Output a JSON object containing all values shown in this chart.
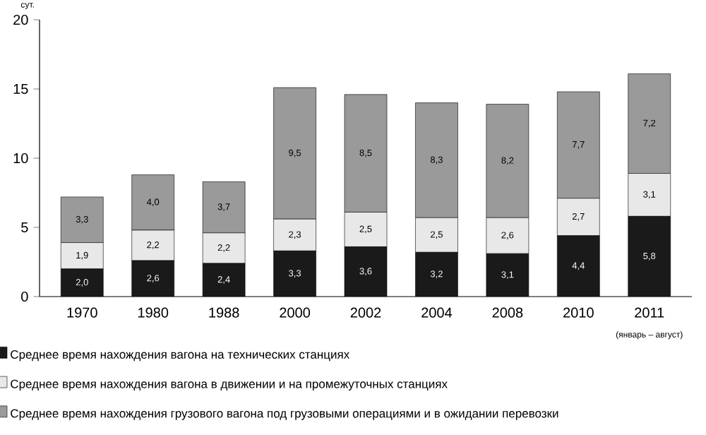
{
  "chart_data": {
    "type": "bar",
    "stacked": true,
    "ylabel": "сут.",
    "categories": [
      "1970",
      "1980",
      "1988",
      "2000",
      "2002",
      "2004",
      "2008",
      "2010",
      "2011"
    ],
    "annotations": [
      "(январь – август)"
    ],
    "series": [
      {
        "name": "Среднее время нахождения вагона на технических станциях",
        "color": "#1a1a1a",
        "values": [
          2.0,
          2.6,
          2.4,
          3.3,
          3.6,
          3.2,
          3.1,
          4.4,
          5.8
        ],
        "value_labels": [
          "2,0",
          "2,6",
          "2,4",
          "3,3",
          "3,6",
          "3,2",
          "3,1",
          "4,4",
          "5,8"
        ]
      },
      {
        "name": "Среднее время нахождения вагона в движении и на промежуточных станциях",
        "color": "#e8e8e8",
        "values": [
          1.9,
          2.2,
          2.2,
          2.3,
          2.5,
          2.5,
          2.6,
          2.7,
          3.1
        ],
        "value_labels": [
          "1,9",
          "2,2",
          "2,2",
          "2,3",
          "2,5",
          "2,5",
          "2,6",
          "2,7",
          "3,1"
        ]
      },
      {
        "name": "Среднее время нахождения грузового вагона под грузовыми операциями и в ожидании перевозки",
        "color": "#9a9a9a",
        "values": [
          3.3,
          4.0,
          3.7,
          9.5,
          8.5,
          8.3,
          8.2,
          7.7,
          7.2
        ],
        "value_labels": [
          "3,3",
          "4,0",
          "3,7",
          "9,5",
          "8,5",
          "8,3",
          "8,2",
          "7,7",
          "7,2"
        ]
      }
    ],
    "ylim": [
      0,
      20
    ],
    "yticks": [
      0,
      5,
      10,
      15,
      20
    ],
    "legend": "bottom"
  }
}
